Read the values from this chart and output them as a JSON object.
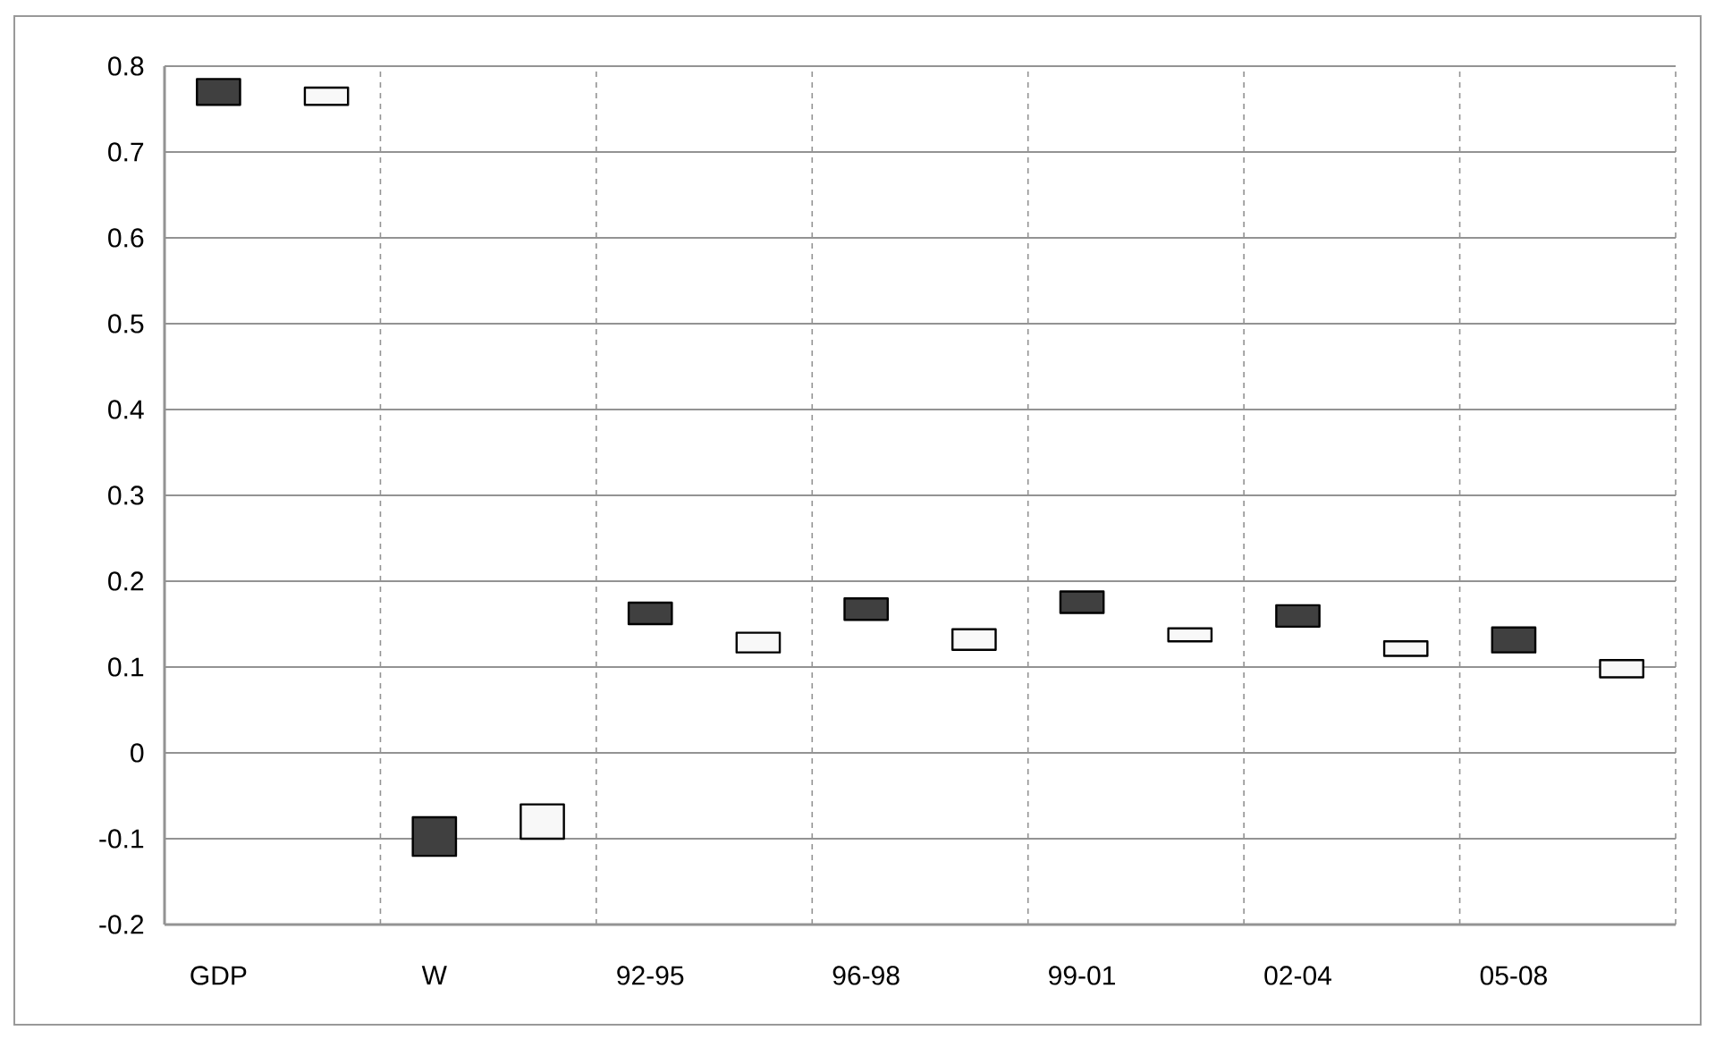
{
  "chart_data": {
    "type": "bar",
    "categories": [
      "GDP",
      "W",
      "92-95",
      "96-98",
      "99-01",
      "02-04",
      "05-08"
    ],
    "series": [
      {
        "color": "#404040",
        "base": [
          0.755,
          -0.12,
          0.15,
          0.155,
          0.163,
          0.147,
          0.117
        ],
        "values": [
          0.03,
          0.045,
          0.025,
          0.025,
          0.025,
          0.025,
          0.029
        ]
      },
      {
        "color": "#f8f8f8",
        "base": [
          0.755,
          -0.1,
          0.117,
          0.12,
          0.13,
          0.113,
          0.088
        ],
        "values": [
          0.02,
          0.04,
          0.023,
          0.024,
          0.015,
          0.017,
          0.02
        ]
      }
    ],
    "ylim": [
      -0.2,
      0.8
    ],
    "yticks": [
      -0.2,
      -0.1,
      0,
      0.1,
      0.2,
      0.3,
      0.4,
      0.5,
      0.6,
      0.7,
      0.8
    ],
    "grid": true
  }
}
